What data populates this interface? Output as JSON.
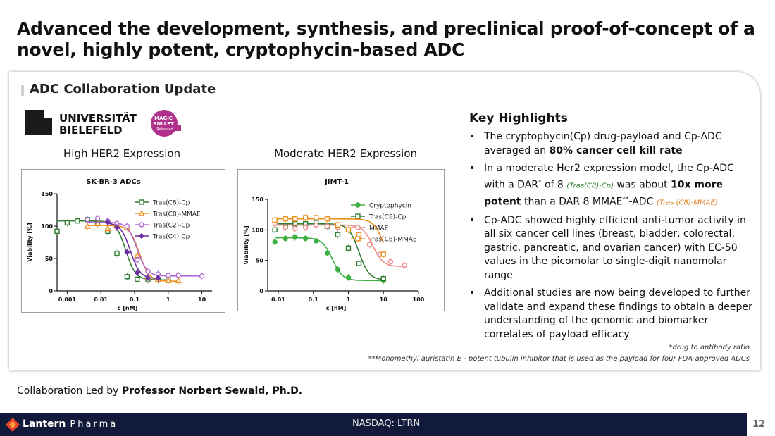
{
  "slide": {
    "title": "Advanced the development, synthesis, and preclinical proof-of-concept of a novel, highly potent, cryptophycin-based ADC",
    "section_title": "ADC Collaboration Update",
    "university_line1": "UNIVERSITÄT",
    "university_line2": "BIELEFELD",
    "magic_bullet_lines": [
      "MAGIC",
      "BULLET",
      "Reloaded"
    ]
  },
  "captions": {
    "left": "High HER2 Expression",
    "right": "Moderate HER2 Expression"
  },
  "highlights": {
    "title": "Key Highlights",
    "b1_pre": "The cryptophycin(Cp) drug-payload and Cp-ADC averaged an ",
    "b1_bold": "80% cancer cell kill rate",
    "b2_pre": "In a moderate Her2 expression model, the Cp-ADC with a DAR",
    "b2_star": "*",
    "b2_of": " of 8 ",
    "b2_green": "(Tras(C8)-Cp)",
    "b2_mid": " was about ",
    "b2_bold": "10x more potent",
    "b2_post": " than a DAR 8 MMAE",
    "b2_stars": "**",
    "b2_adc": "-ADC ",
    "b2_orange": "(Tras (C8)-MMAE)",
    "b3": "Cp-ADC showed highly efficient anti-tumor activity in all six cancer cell lines (breast, bladder, colorectal, gastric, pancreatic, and ovarian cancer) with EC-50 values in the picomolar to single-digit nanomolar range",
    "b4": "Additional studies are now being developed to further validate and expand these findings to obtain a deeper understanding of the genomic and biomarker correlates of payload efficacy"
  },
  "footnotes": {
    "f1": "*drug to antibody ratio",
    "f2": "**Monomethyl auristatin E - potent tubulin inhibitor that is used as the payload for four FDA-approved ADCs"
  },
  "collab": {
    "pre": "Collaboration Led by ",
    "name": "Professor Norbert Sewald, Ph.D."
  },
  "footer": {
    "logo_main": "Lantern",
    "logo_sub": "Pharma",
    "ticker": "NASDAQ: LTRN",
    "page": "12"
  },
  "chart_data": [
    {
      "type": "scatter",
      "title": "SK-BR-3 ADCs",
      "xlabel": "c [nM]",
      "ylabel": "Viability [%]",
      "xscale": "log",
      "xlim": [
        0.0005,
        20
      ],
      "ylim": [
        0,
        150
      ],
      "xticks": [
        "0.001",
        "0.01",
        "0.1",
        "1",
        "10"
      ],
      "yticks": [
        "0",
        "50",
        "100",
        "150"
      ],
      "legend": "top-right",
      "series": [
        {
          "name": "Tras(C8)-Cp",
          "color": "#2e7d32",
          "marker": "square",
          "x": [
            0.0005,
            0.001,
            0.002,
            0.004,
            0.008,
            0.016,
            0.03,
            0.06,
            0.12,
            0.25,
            0.5,
            1
          ],
          "y": [
            92,
            105,
            108,
            110,
            104,
            92,
            58,
            22,
            18,
            17,
            17,
            17
          ],
          "ec50": 0.055,
          "bottom": 17,
          "top": 108
        },
        {
          "name": "Tras(C8)-MMAE",
          "color": "#f0901c",
          "marker": "triangle",
          "x": [
            0.004,
            0.008,
            0.016,
            0.03,
            0.06,
            0.12,
            0.25,
            0.5,
            1,
            2
          ],
          "y": [
            100,
            104,
            96,
            102,
            98,
            55,
            22,
            18,
            16,
            16
          ],
          "ec50": 0.14,
          "bottom": 15,
          "top": 101
        },
        {
          "name": "Tras(C2)-Cp",
          "color": "#b36ad6",
          "marker": "circle",
          "x": [
            0.004,
            0.008,
            0.016,
            0.03,
            0.06,
            0.12,
            0.25,
            0.5,
            1,
            2,
            10
          ],
          "y": [
            110,
            112,
            108,
            104,
            100,
            48,
            30,
            26,
            24,
            24,
            23
          ],
          "ec50": 0.12,
          "bottom": 23,
          "top": 106
        },
        {
          "name": "Tras(C4)-Cp",
          "color": "#6a2fa3",
          "marker": "diamond",
          "x": [
            0.016,
            0.03,
            0.06,
            0.12,
            0.25,
            0.5
          ],
          "y": [
            106,
            98,
            60,
            28,
            20,
            20
          ],
          "ec50": 0.075,
          "bottom": 19,
          "top": 105
        }
      ]
    },
    {
      "type": "scatter",
      "title": "JIMT-1",
      "xlabel": "c [nM]",
      "ylabel": "Viability [%]",
      "xscale": "log",
      "xlim": [
        0.005,
        100
      ],
      "ylim": [
        0,
        150
      ],
      "xticks": [
        "0.01",
        "0.1",
        "1",
        "10",
        "100"
      ],
      "yticks": [
        "0",
        "50",
        "100",
        "150"
      ],
      "legend": "top-right",
      "series": [
        {
          "name": "Cryptophycin",
          "color": "#3db043",
          "marker": "circle",
          "x": [
            0.008,
            0.016,
            0.03,
            0.06,
            0.12,
            0.25,
            0.5,
            1,
            10
          ],
          "y": [
            80,
            86,
            88,
            86,
            82,
            62,
            35,
            22,
            17
          ],
          "ec50": 0.35,
          "bottom": 17,
          "top": 87
        },
        {
          "name": "Tras(C8)-Cp",
          "color": "#2e7d32",
          "marker": "square",
          "x": [
            0.008,
            0.016,
            0.03,
            0.06,
            0.12,
            0.25,
            0.5,
            1,
            2,
            10
          ],
          "y": [
            100,
            106,
            110,
            110,
            112,
            106,
            92,
            70,
            45,
            20
          ],
          "ec50": 2,
          "bottom": 18,
          "top": 110
        },
        {
          "name": "MMAE",
          "color": "#f08a8a",
          "marker": "circle",
          "x": [
            0.008,
            0.016,
            0.03,
            0.06,
            0.12,
            0.25,
            0.5,
            1,
            2,
            4,
            8,
            16,
            40
          ],
          "y": [
            110,
            104,
            102,
            104,
            108,
            106,
            104,
            100,
            90,
            76,
            60,
            48,
            42
          ],
          "ec50": 5,
          "bottom": 40,
          "top": 108
        },
        {
          "name": "Tras(C8)-MMAE",
          "color": "#f0901c",
          "marker": "square",
          "x": [
            0.008,
            0.016,
            0.03,
            0.06,
            0.12,
            0.25,
            0.5,
            1,
            2,
            10
          ],
          "y": [
            116,
            118,
            118,
            120,
            120,
            118,
            108,
            100,
            92,
            60
          ],
          "ec50": 10,
          "bottom": 40,
          "top": 118
        }
      ]
    }
  ]
}
